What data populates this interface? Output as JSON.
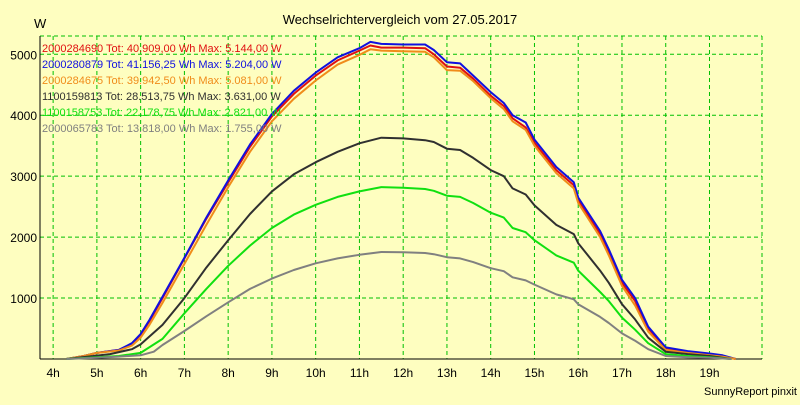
{
  "chart_data": {
    "type": "line",
    "title": "Wechselrichtervergleich vom 27.05.2017",
    "ylabel": "W",
    "xlabel": "",
    "footer": "SunnyReport pinxit",
    "ylim": [
      0,
      5300
    ],
    "xlim": [
      3.7,
      20.2
    ],
    "yticks": [
      1000,
      2000,
      3000,
      4000,
      5000
    ],
    "xticks": [
      {
        "value": 4,
        "label": "4h"
      },
      {
        "value": 5,
        "label": "5h"
      },
      {
        "value": 6,
        "label": "6h"
      },
      {
        "value": 7,
        "label": "7h"
      },
      {
        "value": 8,
        "label": "8h"
      },
      {
        "value": 9,
        "label": "9h"
      },
      {
        "value": 10,
        "label": "10h"
      },
      {
        "value": 11,
        "label": "11h"
      },
      {
        "value": 12,
        "label": "12h"
      },
      {
        "value": 13,
        "label": "13h"
      },
      {
        "value": 14,
        "label": "14h"
      },
      {
        "value": 15,
        "label": "15h"
      },
      {
        "value": 16,
        "label": "16h"
      },
      {
        "value": 17,
        "label": "17h"
      },
      {
        "value": 18,
        "label": "18h"
      },
      {
        "value": 19,
        "label": "19h"
      }
    ],
    "grid": true,
    "legend_position": "top-left",
    "colors": {
      "background": "#fefec0",
      "plot_background": "#fefec0",
      "grid": "#00c000",
      "axis": "#000000",
      "text": "#000000"
    },
    "series": [
      {
        "name": "2000284690 Tot: 40.909,00 Wh Max: 5.144,00 W",
        "color": "#e01010",
        "points": [
          [
            4.3,
            0
          ],
          [
            4.7,
            50
          ],
          [
            5.0,
            100
          ],
          [
            5.5,
            150
          ],
          [
            5.8,
            250
          ],
          [
            6.0,
            400
          ],
          [
            6.2,
            620
          ],
          [
            6.5,
            1000
          ],
          [
            7.0,
            1650
          ],
          [
            7.5,
            2300
          ],
          [
            8.0,
            2900
          ],
          [
            8.5,
            3480
          ],
          [
            9.0,
            3980
          ],
          [
            9.5,
            4350
          ],
          [
            10.0,
            4650
          ],
          [
            10.5,
            4900
          ],
          [
            11.0,
            5060
          ],
          [
            11.25,
            5144
          ],
          [
            11.5,
            5110
          ],
          [
            12.0,
            5110
          ],
          [
            12.5,
            5100
          ],
          [
            12.7,
            5000
          ],
          [
            13.0,
            4800
          ],
          [
            13.3,
            4780
          ],
          [
            13.6,
            4600
          ],
          [
            14.0,
            4320
          ],
          [
            14.3,
            4150
          ],
          [
            14.5,
            3950
          ],
          [
            14.8,
            3800
          ],
          [
            15.0,
            3550
          ],
          [
            15.5,
            3100
          ],
          [
            15.9,
            2850
          ],
          [
            16.0,
            2600
          ],
          [
            16.5,
            2050
          ],
          [
            16.7,
            1750
          ],
          [
            17.0,
            1250
          ],
          [
            17.3,
            950
          ],
          [
            17.6,
            500
          ],
          [
            18.0,
            180
          ],
          [
            18.5,
            120
          ],
          [
            19.0,
            80
          ],
          [
            19.3,
            50
          ],
          [
            19.6,
            0
          ]
        ]
      },
      {
        "name": "2000280879 Tot: 41.156,25 Wh Max: 5.204,00 W",
        "color": "#1010e0",
        "points": [
          [
            4.3,
            0
          ],
          [
            4.7,
            50
          ],
          [
            5.0,
            100
          ],
          [
            5.5,
            150
          ],
          [
            5.8,
            260
          ],
          [
            6.0,
            410
          ],
          [
            6.2,
            640
          ],
          [
            6.5,
            1020
          ],
          [
            7.0,
            1660
          ],
          [
            7.5,
            2320
          ],
          [
            8.0,
            2930
          ],
          [
            8.5,
            3520
          ],
          [
            9.0,
            4020
          ],
          [
            9.5,
            4400
          ],
          [
            10.0,
            4700
          ],
          [
            10.5,
            4950
          ],
          [
            11.0,
            5100
          ],
          [
            11.25,
            5204
          ],
          [
            11.5,
            5170
          ],
          [
            12.0,
            5160
          ],
          [
            12.5,
            5160
          ],
          [
            12.7,
            5070
          ],
          [
            13.0,
            4870
          ],
          [
            13.3,
            4850
          ],
          [
            13.6,
            4650
          ],
          [
            14.0,
            4380
          ],
          [
            14.3,
            4200
          ],
          [
            14.5,
            4000
          ],
          [
            14.8,
            3880
          ],
          [
            15.0,
            3600
          ],
          [
            15.5,
            3150
          ],
          [
            15.9,
            2900
          ],
          [
            16.0,
            2650
          ],
          [
            16.5,
            2100
          ],
          [
            16.7,
            1800
          ],
          [
            17.0,
            1300
          ],
          [
            17.3,
            1000
          ],
          [
            17.6,
            530
          ],
          [
            18.0,
            190
          ],
          [
            18.5,
            130
          ],
          [
            19.0,
            90
          ],
          [
            19.3,
            60
          ],
          [
            19.6,
            0
          ]
        ]
      },
      {
        "name": "2000284675 Tot: 39.942,50 Wh Max: 5.081,00 W",
        "color": "#f08c1a",
        "points": [
          [
            4.3,
            0
          ],
          [
            4.7,
            50
          ],
          [
            5.0,
            100
          ],
          [
            5.5,
            140
          ],
          [
            5.8,
            220
          ],
          [
            6.0,
            350
          ],
          [
            6.2,
            560
          ],
          [
            6.5,
            920
          ],
          [
            7.0,
            1560
          ],
          [
            7.5,
            2200
          ],
          [
            8.0,
            2820
          ],
          [
            8.5,
            3400
          ],
          [
            9.0,
            3900
          ],
          [
            9.5,
            4270
          ],
          [
            10.0,
            4570
          ],
          [
            10.5,
            4830
          ],
          [
            11.0,
            4990
          ],
          [
            11.25,
            5081
          ],
          [
            11.5,
            5060
          ],
          [
            12.0,
            5050
          ],
          [
            12.5,
            5040
          ],
          [
            12.7,
            4950
          ],
          [
            13.0,
            4740
          ],
          [
            13.3,
            4730
          ],
          [
            13.6,
            4560
          ],
          [
            14.0,
            4280
          ],
          [
            14.3,
            4100
          ],
          [
            14.5,
            3900
          ],
          [
            14.8,
            3760
          ],
          [
            15.0,
            3500
          ],
          [
            15.5,
            3050
          ],
          [
            15.9,
            2800
          ],
          [
            16.0,
            2560
          ],
          [
            16.5,
            2000
          ],
          [
            16.7,
            1700
          ],
          [
            17.0,
            1200
          ],
          [
            17.3,
            880
          ],
          [
            17.6,
            450
          ],
          [
            18.0,
            150
          ],
          [
            18.5,
            100
          ],
          [
            19.0,
            60
          ],
          [
            19.3,
            40
          ],
          [
            19.6,
            0
          ]
        ]
      },
      {
        "name": "1100159813 Tot: 28.513,75 Wh Max: 3.631,00 W",
        "color": "#303030",
        "points": [
          [
            4.3,
            0
          ],
          [
            4.8,
            40
          ],
          [
            5.3,
            80
          ],
          [
            5.8,
            160
          ],
          [
            6.0,
            240
          ],
          [
            6.5,
            560
          ],
          [
            7.0,
            1000
          ],
          [
            7.5,
            1500
          ],
          [
            8.0,
            1950
          ],
          [
            8.5,
            2380
          ],
          [
            9.0,
            2750
          ],
          [
            9.5,
            3030
          ],
          [
            10.0,
            3230
          ],
          [
            10.5,
            3400
          ],
          [
            11.0,
            3540
          ],
          [
            11.5,
            3631
          ],
          [
            12.0,
            3620
          ],
          [
            12.5,
            3590
          ],
          [
            12.7,
            3560
          ],
          [
            13.0,
            3450
          ],
          [
            13.3,
            3430
          ],
          [
            13.6,
            3300
          ],
          [
            14.0,
            3100
          ],
          [
            14.3,
            3000
          ],
          [
            14.5,
            2800
          ],
          [
            14.8,
            2700
          ],
          [
            15.0,
            2520
          ],
          [
            15.5,
            2200
          ],
          [
            15.9,
            2050
          ],
          [
            16.0,
            1900
          ],
          [
            16.5,
            1450
          ],
          [
            16.7,
            1250
          ],
          [
            17.0,
            900
          ],
          [
            17.3,
            650
          ],
          [
            17.6,
            350
          ],
          [
            18.0,
            120
          ],
          [
            18.5,
            80
          ],
          [
            19.0,
            50
          ],
          [
            19.5,
            0
          ]
        ]
      },
      {
        "name": "1100158753 Tot: 22.178,75 Wh Max: 2.821,00 W",
        "color": "#10e010",
        "points": [
          [
            4.3,
            0
          ],
          [
            5.0,
            30
          ],
          [
            5.5,
            50
          ],
          [
            6.0,
            100
          ],
          [
            6.5,
            330
          ],
          [
            7.0,
            750
          ],
          [
            7.5,
            1150
          ],
          [
            8.0,
            1530
          ],
          [
            8.5,
            1860
          ],
          [
            9.0,
            2150
          ],
          [
            9.5,
            2370
          ],
          [
            10.0,
            2530
          ],
          [
            10.5,
            2660
          ],
          [
            11.0,
            2750
          ],
          [
            11.5,
            2821
          ],
          [
            12.0,
            2810
          ],
          [
            12.5,
            2790
          ],
          [
            12.7,
            2760
          ],
          [
            13.0,
            2680
          ],
          [
            13.3,
            2660
          ],
          [
            13.6,
            2560
          ],
          [
            14.0,
            2400
          ],
          [
            14.3,
            2320
          ],
          [
            14.5,
            2150
          ],
          [
            14.8,
            2080
          ],
          [
            15.0,
            1950
          ],
          [
            15.5,
            1700
          ],
          [
            15.9,
            1580
          ],
          [
            16.0,
            1450
          ],
          [
            16.5,
            1100
          ],
          [
            16.7,
            950
          ],
          [
            17.0,
            680
          ],
          [
            17.3,
            480
          ],
          [
            17.6,
            260
          ],
          [
            18.0,
            80
          ],
          [
            18.5,
            50
          ],
          [
            19.0,
            30
          ],
          [
            19.5,
            0
          ]
        ]
      },
      {
        "name": "2000065783 Tot: 13.818,00 Wh Max: 1.755,00 W",
        "color": "#808080",
        "points": [
          [
            4.3,
            0
          ],
          [
            5.0,
            20
          ],
          [
            5.5,
            40
          ],
          [
            6.0,
            60
          ],
          [
            6.3,
            120
          ],
          [
            6.5,
            230
          ],
          [
            7.0,
            460
          ],
          [
            7.5,
            700
          ],
          [
            8.0,
            930
          ],
          [
            8.5,
            1150
          ],
          [
            9.0,
            1320
          ],
          [
            9.5,
            1460
          ],
          [
            10.0,
            1570
          ],
          [
            10.5,
            1650
          ],
          [
            11.0,
            1710
          ],
          [
            11.5,
            1755
          ],
          [
            12.0,
            1750
          ],
          [
            12.5,
            1740
          ],
          [
            12.7,
            1720
          ],
          [
            13.0,
            1670
          ],
          [
            13.3,
            1650
          ],
          [
            13.6,
            1590
          ],
          [
            14.0,
            1490
          ],
          [
            14.3,
            1440
          ],
          [
            14.5,
            1340
          ],
          [
            14.8,
            1290
          ],
          [
            15.0,
            1220
          ],
          [
            15.5,
            1060
          ],
          [
            15.9,
            980
          ],
          [
            16.0,
            900
          ],
          [
            16.5,
            690
          ],
          [
            16.7,
            590
          ],
          [
            17.0,
            420
          ],
          [
            17.3,
            300
          ],
          [
            17.6,
            160
          ],
          [
            18.0,
            50
          ],
          [
            18.5,
            30
          ],
          [
            19.0,
            20
          ],
          [
            19.5,
            0
          ]
        ]
      }
    ]
  }
}
